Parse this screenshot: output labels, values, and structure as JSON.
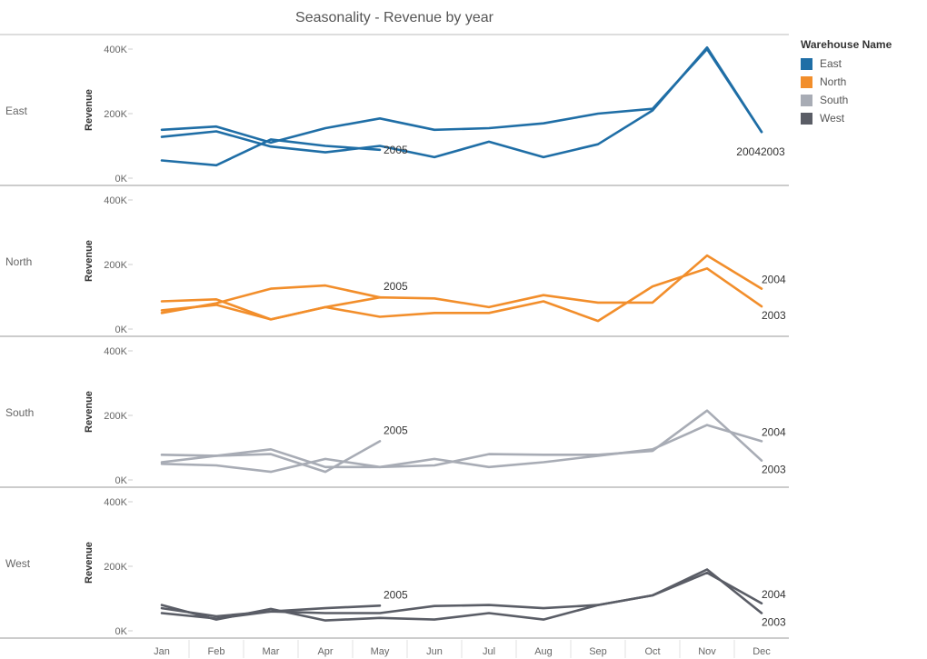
{
  "chart_data": {
    "type": "line",
    "title": "Seasonality - Revenue by year",
    "x": [
      "Jan",
      "Feb",
      "Mar",
      "Apr",
      "May",
      "Jun",
      "Jul",
      "Aug",
      "Sep",
      "Oct",
      "Nov",
      "Dec"
    ],
    "ylabel": "Revenue",
    "ylim": [
      0,
      400000
    ],
    "yticks": [
      {
        "value": 0,
        "label": "0K"
      },
      {
        "value": 200000,
        "label": "200K"
      },
      {
        "value": 400000,
        "label": "400K"
      }
    ],
    "legend_title": "Warehouse Name",
    "legend_position": "top-right",
    "panels": [
      {
        "name": "East",
        "color": "#1f6ea6",
        "series": [
          {
            "name": "2003",
            "values": [
              150000,
              160000,
              110000,
              155000,
              185000,
              150000,
              155000,
              170000,
              200000,
              215000,
              400000,
              143000
            ]
          },
          {
            "name": "2004",
            "values": [
              128000,
              145000,
              98000,
              80000,
              100000,
              65000,
              113000,
              65000,
              105000,
              210000,
              405000,
              143000
            ]
          },
          {
            "name": "2005",
            "values": [
              55000,
              40000,
              120000,
              100000,
              88000,
              null,
              null,
              null,
              null,
              null,
              null,
              null
            ]
          }
        ],
        "labels": [
          {
            "text": "2005",
            "at": "May"
          },
          {
            "text": "2004",
            "at": "Dec"
          },
          {
            "text": "2003",
            "at": "Dec"
          }
        ]
      },
      {
        "name": "North",
        "color": "#f28e2b",
        "series": [
          {
            "name": "2003",
            "values": [
              86000,
              92000,
              30000,
              68000,
              38000,
              50000,
              50000,
              86000,
              25000,
              132000,
              188000,
              70000
            ]
          },
          {
            "name": "2004",
            "values": [
              58000,
              75000,
              30000,
              68000,
              98000,
              95000,
              68000,
              105000,
              82000,
              82000,
              228000,
              125000
            ]
          },
          {
            "name": "2005",
            "values": [
              50000,
              80000,
              125000,
              135000,
              98000,
              null,
              null,
              null,
              null,
              null,
              null,
              null
            ]
          }
        ],
        "labels": [
          {
            "text": "2005",
            "at": "May"
          },
          {
            "text": "2004",
            "at": "Dec"
          },
          {
            "text": "2003",
            "at": "Dec"
          }
        ]
      },
      {
        "name": "South",
        "color": "#a8acb5",
        "series": [
          {
            "name": "2003",
            "values": [
              50000,
              45000,
              25000,
              65000,
              40000,
              45000,
              80000,
              78000,
              78000,
              90000,
              215000,
              60000
            ]
          },
          {
            "name": "2004",
            "values": [
              78000,
              75000,
              95000,
              40000,
              40000,
              65000,
              40000,
              55000,
              75000,
              95000,
              170000,
              120000
            ]
          },
          {
            "name": "2005",
            "values": [
              55000,
              75000,
              80000,
              25000,
              120000,
              null,
              null,
              null,
              null,
              null,
              null,
              null
            ]
          }
        ],
        "labels": [
          {
            "text": "2005",
            "at": "May"
          },
          {
            "text": "2004",
            "at": "Dec"
          },
          {
            "text": "2003",
            "at": "Dec"
          }
        ]
      },
      {
        "name": "West",
        "color": "#5a5d66",
        "series": [
          {
            "name": "2003",
            "values": [
              80000,
              35000,
              68000,
              32000,
              40000,
              35000,
              55000,
              35000,
              80000,
              110000,
              190000,
              55000
            ]
          },
          {
            "name": "2004",
            "values": [
              70000,
              45000,
              60000,
              55000,
              55000,
              77000,
              80000,
              70000,
              80000,
              110000,
              180000,
              85000
            ]
          },
          {
            "name": "2005",
            "values": [
              55000,
              38000,
              60000,
              70000,
              78000,
              null,
              null,
              null,
              null,
              null,
              null,
              null
            ]
          }
        ],
        "labels": [
          {
            "text": "2005",
            "at": "May"
          },
          {
            "text": "2004",
            "at": "Dec"
          },
          {
            "text": "2003",
            "at": "Dec"
          }
        ]
      }
    ]
  },
  "legend": {
    "title": "Warehouse Name",
    "items": [
      {
        "label": "East",
        "color": "#1f6ea6"
      },
      {
        "label": "North",
        "color": "#f28e2b"
      },
      {
        "label": "South",
        "color": "#a8acb5"
      },
      {
        "label": "West",
        "color": "#5a5d66"
      }
    ]
  }
}
